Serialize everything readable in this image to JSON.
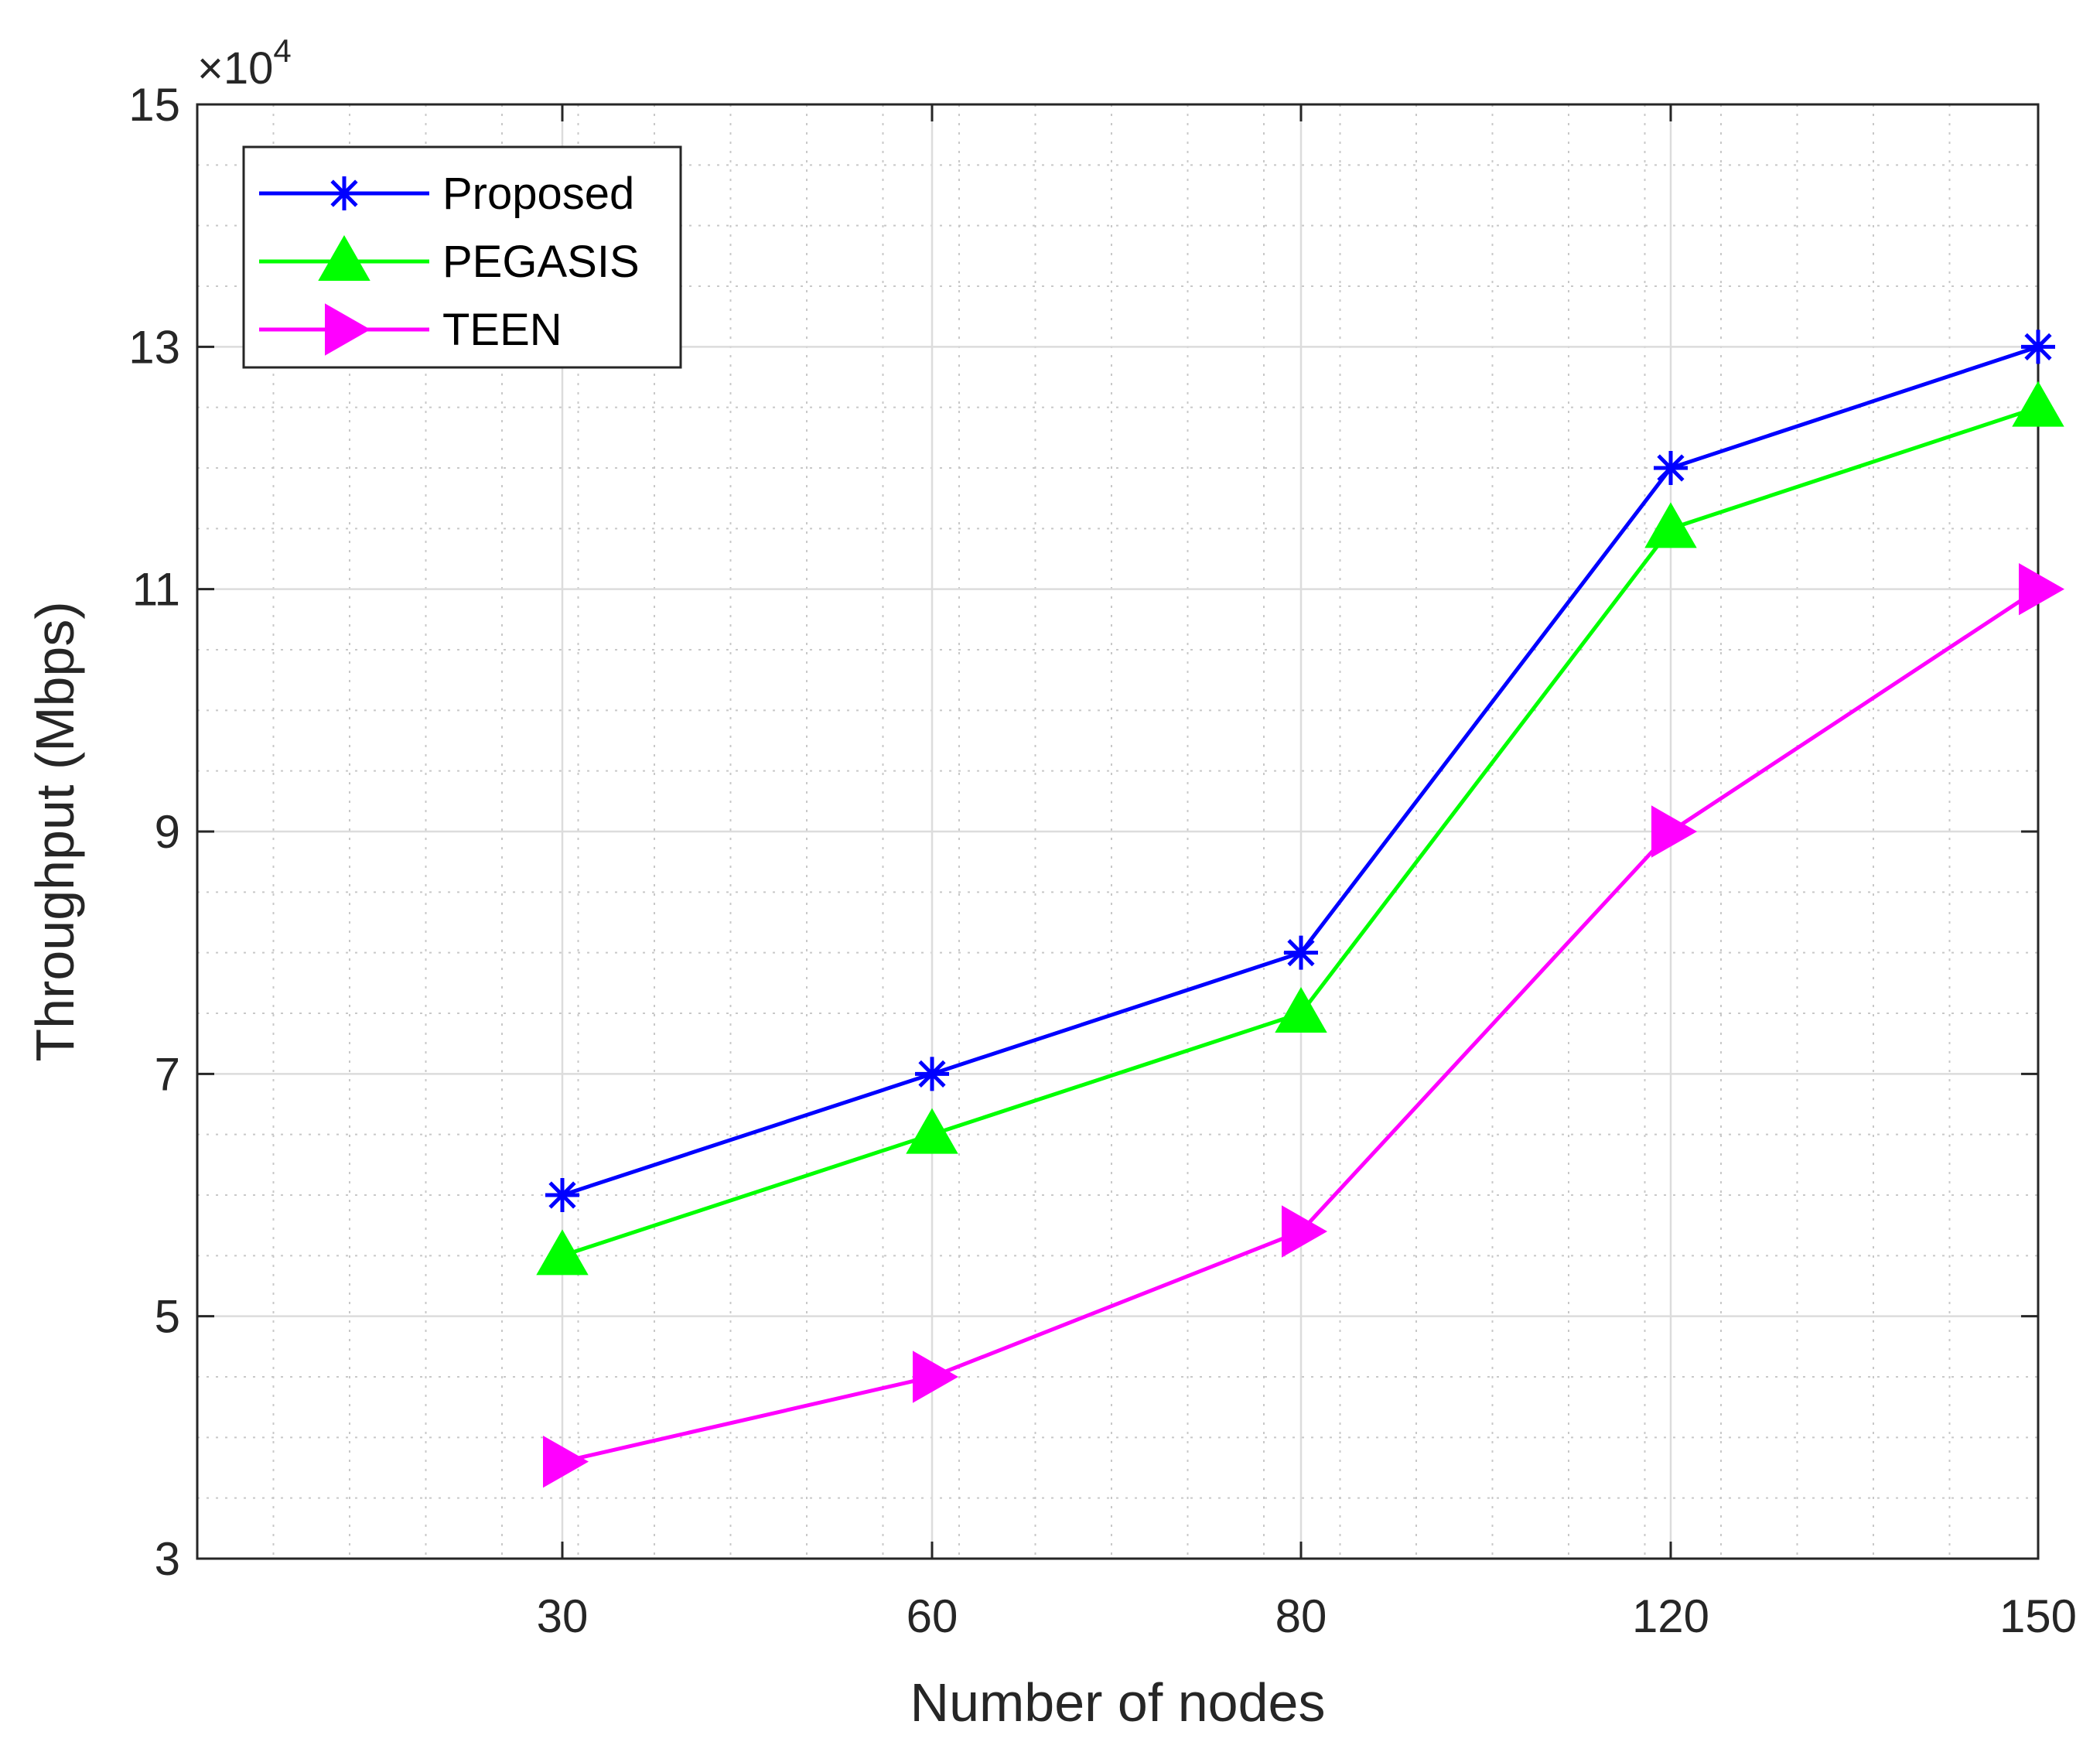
{
  "chart_data": {
    "type": "line",
    "categories": [
      "30",
      "60",
      "80",
      "120",
      "150"
    ],
    "xlabel": "Number of nodes",
    "ylabel": "Throughput (Mbps)",
    "ylim": [
      3,
      15
    ],
    "yticks": [
      "3",
      "5",
      "7",
      "9",
      "11",
      "13",
      "15"
    ],
    "y_exponent_prefix": "×10",
    "y_exponent_power": "4",
    "grid": true,
    "minor_grid": true,
    "legend_position": "top-left",
    "series": [
      {
        "name": "Proposed",
        "values": [
          6.0,
          7.0,
          8.0,
          12.0,
          13.0
        ],
        "color": "#0000ff",
        "marker": "asterisk"
      },
      {
        "name": "PEGASIS",
        "values": [
          5.5,
          6.5,
          7.5,
          11.5,
          12.5
        ],
        "color": "#00ff00",
        "marker": "triangle-up"
      },
      {
        "name": "TEEN",
        "values": [
          3.8,
          4.5,
          5.7,
          9.0,
          11.0
        ],
        "color": "#ff00ff",
        "marker": "triangle-right"
      }
    ]
  }
}
